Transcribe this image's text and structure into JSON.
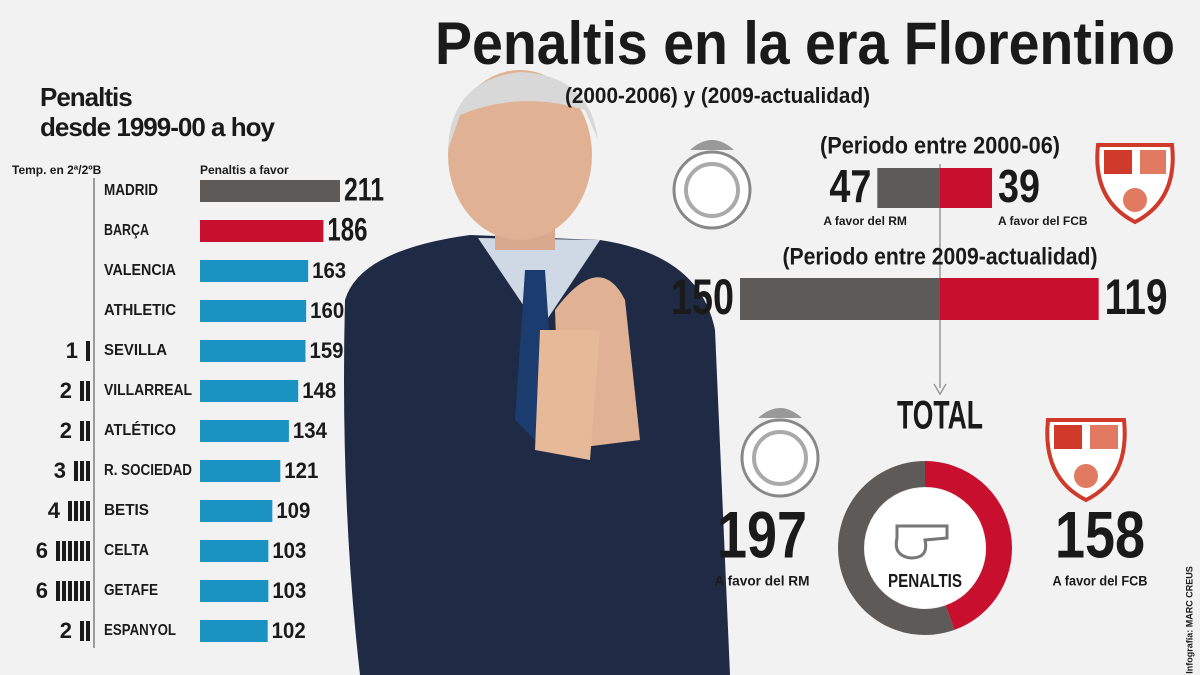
{
  "title": "Penaltis en la era Florentino",
  "subtitle": "(2000-2006) y (2009-actualidad)",
  "credit": "Infografía: MARC CREUS",
  "chart_data": [
    {
      "type": "bar",
      "title": "Penaltis\ndesde 1999-00 a hoy",
      "seasons_label": "Temp. en 2ª/2ºB",
      "value_label": "Penaltis a favor",
      "categories": [
        "MADRID",
        "BARÇA",
        "VALENCIA",
        "ATHLETIC",
        "SEVILLA",
        "VILLARREAL",
        "ATLÉTICO",
        "R. SOCIEDAD",
        "BETIS",
        "CELTA",
        "GETAFE",
        "ESPANYOL"
      ],
      "values": [
        211,
        186,
        163,
        160,
        159,
        148,
        134,
        121,
        109,
        103,
        103,
        102
      ],
      "seasons": [
        null,
        null,
        null,
        null,
        1,
        2,
        2,
        3,
        4,
        6,
        6,
        2
      ],
      "colors": [
        "#5d5a58",
        "#c8102e",
        "#1a93c3",
        "#1a93c3",
        "#1a93c3",
        "#1a93c3",
        "#1a93c3",
        "#1a93c3",
        "#1a93c3",
        "#1a93c3",
        "#1a93c3",
        "#1a93c3"
      ]
    },
    {
      "type": "diverging",
      "title": "(Periodo entre 2000-06)",
      "series": [
        {
          "name": "A favor del RM",
          "color": "#5d5a58",
          "values": [
            47
          ]
        },
        {
          "name": "A favor del FCB",
          "color": "#c8102e",
          "values": [
            39
          ]
        }
      ]
    },
    {
      "type": "diverging",
      "title": "(Periodo entre 2009-actualidad)",
      "series": [
        {
          "color": "#5d5a58",
          "values": [
            150
          ]
        },
        {
          "color": "#c8102e",
          "values": [
            119
          ]
        }
      ]
    },
    {
      "type": "donut",
      "title": "TOTAL",
      "center_label": "PENALTIS",
      "series": [
        {
          "name": "A favor del RM",
          "color": "#5d5a58",
          "values": [
            197
          ]
        },
        {
          "name": "A favor del FCB",
          "color": "#c8102e",
          "values": [
            158
          ]
        }
      ]
    }
  ]
}
